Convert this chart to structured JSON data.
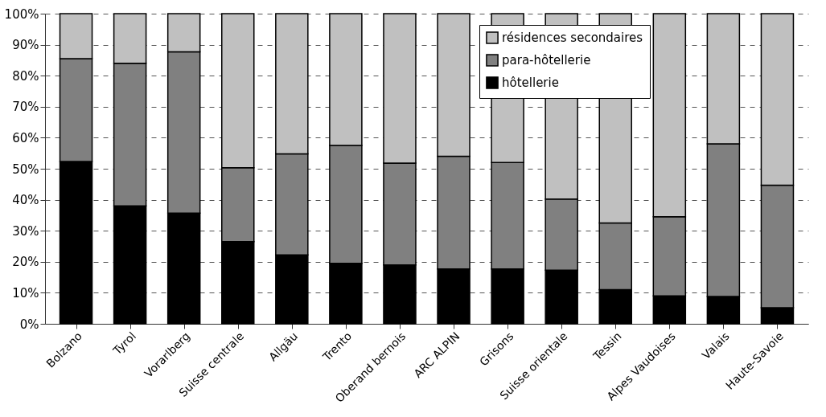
{
  "chart_data": {
    "type": "bar",
    "stacked": true,
    "categories": [
      "Bolzano",
      "Tyrol",
      "Vorarlberg",
      "Suisse centrale",
      "Allgäu",
      "Trento",
      "Oberand bernois",
      "ARC ALPIN",
      "Grisons",
      "Suisse orientale",
      "Tessin",
      "Alpes Vaudoises",
      "Valais",
      "Haute-Savoie"
    ],
    "series": [
      {
        "name": "hôtellerie",
        "color": "#000000",
        "values": [
          52.3,
          38,
          35.7,
          26.5,
          22.2,
          19.5,
          19,
          17.7,
          17.7,
          17.3,
          11,
          9,
          8.8,
          5.2
        ]
      },
      {
        "name": "para-hôtellerie",
        "color": "#808080",
        "values": [
          33.2,
          46,
          52,
          23.8,
          32.6,
          38,
          32.8,
          36.3,
          34.3,
          22.9,
          21.5,
          25.5,
          49.2,
          39.5
        ]
      },
      {
        "name": "résidences secondaires",
        "color": "#c0c0c0",
        "values": [
          14.5,
          16,
          12.3,
          49.7,
          45.2,
          42.5,
          48.2,
          46,
          48,
          59.8,
          67.5,
          65.5,
          42,
          55.3
        ]
      }
    ],
    "ylim": [
      0,
      100
    ],
    "yticks": [
      {
        "value": 0,
        "label": "0%"
      },
      {
        "value": 10,
        "label": "10%"
      },
      {
        "value": 20,
        "label": "20%"
      },
      {
        "value": 30,
        "label": "30%"
      },
      {
        "value": 40,
        "label": "40%"
      },
      {
        "value": 50,
        "label": "50%"
      },
      {
        "value": 60,
        "label": "60%"
      },
      {
        "value": 70,
        "label": "70%"
      },
      {
        "value": 80,
        "label": "80%"
      },
      {
        "value": 90,
        "label": "90%"
      },
      {
        "value": 100,
        "label": "100%"
      }
    ],
    "grid": "y",
    "legend": "top right"
  }
}
